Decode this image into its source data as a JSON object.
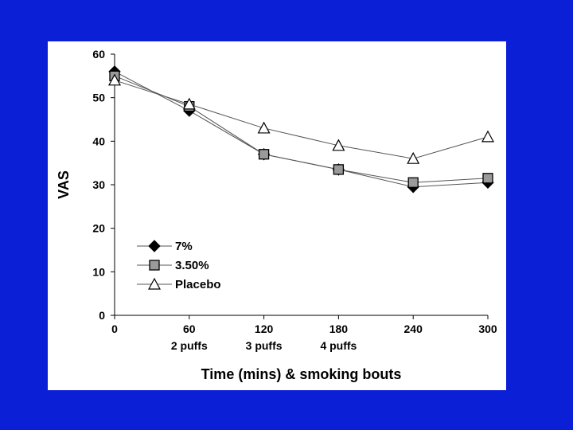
{
  "background_color": "#0a1fd6",
  "panel_color": "#ffffff",
  "chart_data": {
    "type": "line",
    "title": "",
    "xlabel": "Time (mins) & smoking bouts",
    "ylabel": "VAS",
    "x": [
      0,
      60,
      120,
      180,
      240,
      300
    ],
    "x_tick_labels": [
      "0",
      "60",
      "120",
      "180",
      "240",
      "300"
    ],
    "x_sub_labels": [
      "",
      "2 puffs",
      "3 puffs",
      "4 puffs",
      "",
      ""
    ],
    "ylim": [
      0,
      60
    ],
    "y_ticks": [
      0,
      10,
      20,
      30,
      40,
      50,
      60
    ],
    "grid": false,
    "legend_position": "bottom-left",
    "series": [
      {
        "name": "7%",
        "marker": "diamond",
        "color": "#000000",
        "values": [
          56,
          47,
          37,
          33.5,
          29.5,
          30.5
        ]
      },
      {
        "name": "3.50%",
        "marker": "square",
        "color": "#9a9a9a",
        "values": [
          55,
          48,
          37,
          33.5,
          30.5,
          31.5
        ]
      },
      {
        "name": "Placebo",
        "marker": "triangle",
        "color": "#ffffff",
        "values": [
          54,
          48.5,
          43,
          39,
          36,
          41
        ]
      }
    ]
  }
}
